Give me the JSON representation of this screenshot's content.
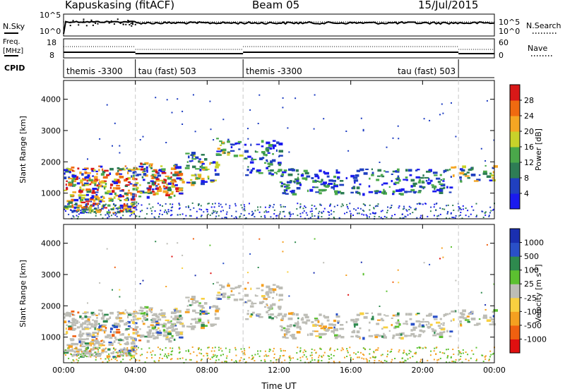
{
  "header": {
    "station": "Kapuskasing (fitACF)",
    "beam": "Beam 05",
    "date": "15/Jul/2015"
  },
  "strip_labels": {
    "nsky": "N.Sky",
    "nsky_ticks": [
      "10^5",
      "10^0"
    ],
    "nsearch": "N.Search",
    "nsearch_ticks": [
      "10^5",
      "10^0"
    ],
    "freq_line1": "Freq.",
    "freq_line2": "[MHz]",
    "freq_ticks": [
      "18",
      "8"
    ],
    "nave": "Nave",
    "nave_ticks": [
      "60",
      "0"
    ],
    "cpid": "CPID"
  },
  "cpid_segments": [
    {
      "label": "themis -3300",
      "start_h": 0,
      "end_h": 4
    },
    {
      "label": "tau (fast) 503",
      "start_h": 4,
      "end_h": 10
    },
    {
      "label": "themis -3300",
      "start_h": 10,
      "end_h": 22
    },
    {
      "label": "tau (fast) 503",
      "start_h": 22,
      "end_h": 24
    }
  ],
  "colors": {
    "power": [
      "#1a1aee",
      "#2040c0",
      "#2e7d55",
      "#4aa84a",
      "#c8d22a",
      "#f5a623",
      "#ef6a10",
      "#d81818"
    ],
    "velocity": [
      "#e01010",
      "#f06010",
      "#f5a020",
      "#f8d040",
      "#bdbdb6",
      "#5cc030",
      "#2e8a4e",
      "#2a50c8",
      "#1a2fb0"
    ],
    "scatter_blue": "#1a3ac0",
    "ground_gray": "#bdbdb6",
    "dashed": "#c8c8c8"
  },
  "chart_data": [
    {
      "type": "heatmap",
      "title": "",
      "xlabel": "",
      "ylabel": "Slant Range [km]",
      "x_ticks_h": [
        0,
        4,
        8,
        12,
        16,
        20,
        24
      ],
      "xlim_h": [
        0,
        24
      ],
      "ylim_km": [
        180,
        4600
      ],
      "y_ticks": [
        "1000",
        "2000",
        "3000",
        "4000"
      ],
      "colorbar": {
        "label": "Power [dB]",
        "ticks": [
          "4",
          "8",
          "12",
          "16",
          "20",
          "24",
          "28"
        ],
        "range": [
          0,
          30
        ]
      },
      "echo_regions": [
        {
          "t": [
            0.0,
            4.0
          ],
          "r": [
            400,
            1900
          ],
          "level": "strong"
        },
        {
          "t": [
            4.0,
            6.5
          ],
          "r": [
            900,
            2000
          ],
          "level": "strong"
        },
        {
          "t": [
            6.5,
            8.5
          ],
          "r": [
            1300,
            2400
          ],
          "level": "moderate"
        },
        {
          "t": [
            8.5,
            10.0
          ],
          "r": [
            2200,
            2800
          ],
          "level": "moderate"
        },
        {
          "t": [
            10.0,
            12.0
          ],
          "r": [
            1600,
            2700
          ],
          "level": "weak"
        },
        {
          "t": [
            12.0,
            21.5
          ],
          "r": [
            1000,
            1800
          ],
          "level": "weak"
        },
        {
          "t": [
            21.5,
            24.0
          ],
          "r": [
            1400,
            1900
          ],
          "level": "moderate"
        }
      ]
    },
    {
      "type": "heatmap",
      "title": "",
      "xlabel": "Time UT",
      "ylabel": "Slant Range [km]",
      "x_ticks": [
        "00:00",
        "04:00",
        "08:00",
        "12:00",
        "16:00",
        "20:00",
        "00:00"
      ],
      "x_ticks_h": [
        0,
        4,
        8,
        12,
        16,
        20,
        24
      ],
      "xlim_h": [
        0,
        24
      ],
      "ylim_km": [
        180,
        4600
      ],
      "y_ticks": [
        "1000",
        "2000",
        "3000",
        "4000"
      ],
      "colorbar": {
        "label": "Velocity [m s",
        "label_sup": "-1",
        "label_end": "]",
        "ticks": [
          "1000",
          "500",
          "100",
          "25",
          "-25",
          "-100",
          "-500",
          "-1000"
        ]
      },
      "note": "ground scatter shown in gray"
    }
  ],
  "dashed_lines_h": [
    4,
    10,
    22
  ]
}
